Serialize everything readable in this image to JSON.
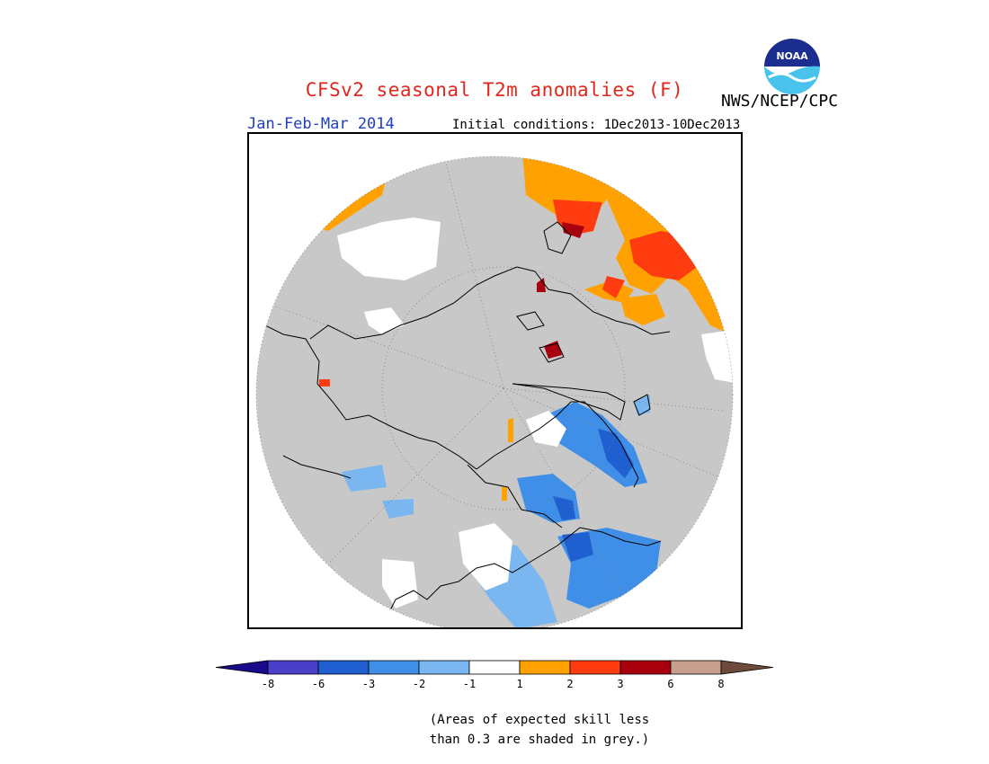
{
  "header": {
    "title": "CFSv2 seasonal T2m anomalies (F)",
    "period": "Jan-Feb-Mar 2014",
    "initial_conditions": "Initial conditions: 1Dec2013-10Dec2013",
    "organization": "NWS/NCEP/CPC",
    "logo_text": "NOAA",
    "logo_icon": "noaa-logo-icon"
  },
  "map": {
    "projection": "polar stereographic (north pole)",
    "background_color": "#c8c8c8",
    "land_outline_color": "#000000"
  },
  "legend": {
    "levels": [
      "-8",
      "-6",
      "-3",
      "-2",
      "-1",
      "1",
      "2",
      "3",
      "6",
      "8"
    ],
    "colors": [
      "#1a0a8c",
      "#4a3fc8",
      "#1f5fd0",
      "#3f8fe8",
      "#7ab6f0",
      "#ffffff",
      "#ffa100",
      "#ff3c0f",
      "#a8000f",
      "#c8a090",
      "#6e4a3a"
    ]
  },
  "note": {
    "line1": "(Areas of expected skill less",
    "line2": "than 0.3 are shaded in grey.)"
  }
}
